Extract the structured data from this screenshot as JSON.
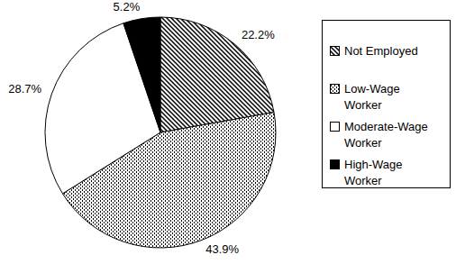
{
  "chart_data": {
    "type": "pie",
    "categories": [
      "Not Employed",
      "Low-Wage Worker",
      "Moderate-Wage Worker",
      "High-Wage Worker"
    ],
    "values": [
      22.2,
      43.9,
      28.7,
      5.2
    ],
    "value_labels": [
      "22.2%",
      "43.9%",
      "28.7%",
      "5.2%"
    ],
    "data_labels": true,
    "legend": "right"
  }
}
